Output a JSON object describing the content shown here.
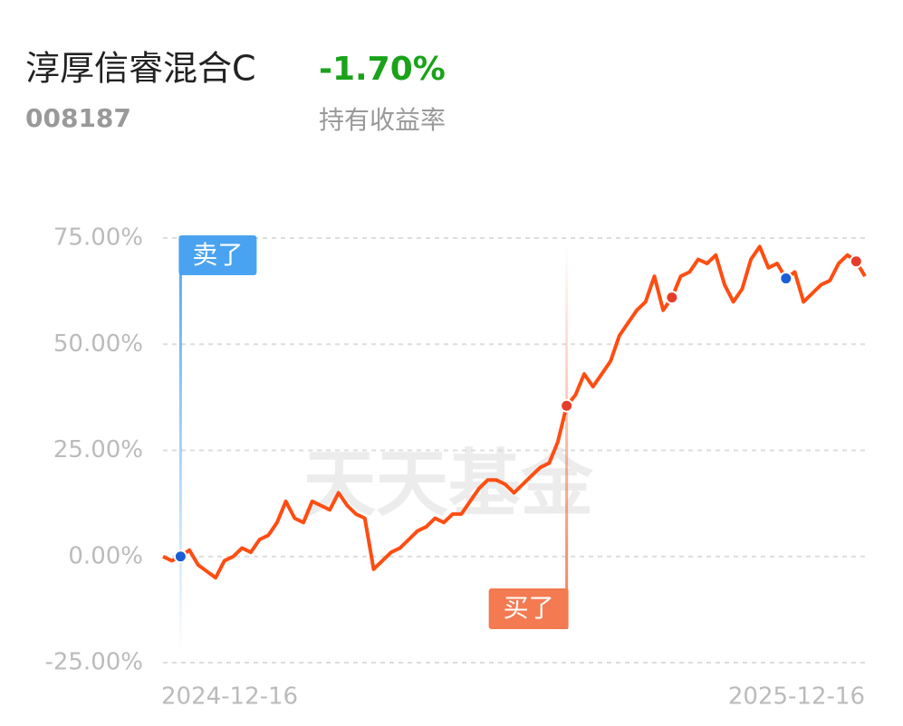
{
  "header": {
    "fund_name": "淳厚信睿混合C",
    "fund_code": "008187",
    "return_value": "-1.70%",
    "return_label": "持有收益率"
  },
  "chart_data": {
    "type": "line",
    "watermark": "天天基金",
    "x_labels": [
      "2024-12-16",
      "2025-12-16"
    ],
    "values": [
      0,
      -1,
      0,
      1.5,
      -2,
      -3.5,
      -5,
      -1,
      0,
      2,
      1,
      4,
      5,
      8,
      13,
      9,
      8,
      13,
      12,
      11,
      15,
      12,
      10,
      9,
      -3,
      -1,
      1,
      2,
      4,
      6,
      7,
      9,
      8,
      10,
      10,
      13,
      16,
      18,
      18,
      17,
      15,
      17,
      19,
      21,
      22,
      27,
      35.5,
      38,
      43,
      40,
      43,
      46,
      52,
      55,
      58,
      60,
      66,
      58,
      61,
      66,
      67,
      70,
      69,
      71,
      64,
      60,
      63,
      70,
      73,
      68,
      69,
      65.5,
      67,
      60,
      62,
      64,
      65,
      69,
      71,
      69.5,
      66
    ],
    "color": "#ff4d12",
    "ylim": [
      -25,
      75
    ],
    "yticks": [
      {
        "value": -25,
        "label": "-25.00%"
      },
      {
        "value": 0,
        "label": "0.00%"
      },
      {
        "value": 25,
        "label": "25.00%"
      },
      {
        "value": 50,
        "label": "50.00%"
      },
      {
        "value": 75,
        "label": "75.00%"
      }
    ],
    "grid": true,
    "markers": [
      {
        "index": 2,
        "color": "#1a5fd6",
        "label": "卖了",
        "label_color": "#4aa3f0"
      },
      {
        "index": 46,
        "color": "#e53d2a",
        "label": "买了",
        "label_color": "#f47a52"
      },
      {
        "index": 58,
        "color": "#e53d2a"
      },
      {
        "index": 71,
        "color": "#1a5fd6"
      },
      {
        "index": 79,
        "color": "#e53d2a"
      }
    ]
  }
}
